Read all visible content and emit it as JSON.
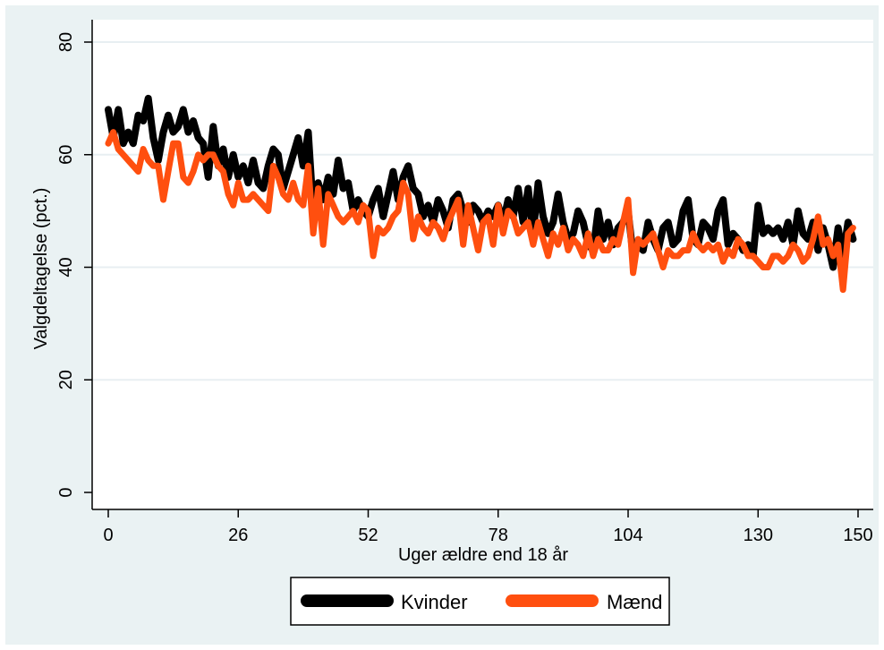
{
  "chart_data": {
    "type": "line",
    "xlabel": "Uger ældre end 18 år",
    "ylabel": "Valgdeltagelse (pct.)",
    "xlim": [
      0,
      150
    ],
    "ylim": [
      0,
      80
    ],
    "x_ticks": [
      0,
      26,
      52,
      78,
      104,
      130,
      150
    ],
    "y_ticks": [
      0,
      20,
      40,
      60,
      80
    ],
    "grid": true,
    "legend_position": "bottom",
    "series": [
      {
        "name": "Kvinder",
        "color": "#000000",
        "x": [
          0,
          1,
          2,
          3,
          4,
          5,
          6,
          7,
          8,
          9,
          10,
          11,
          12,
          13,
          14,
          15,
          16,
          17,
          18,
          19,
          20,
          21,
          22,
          23,
          24,
          25,
          26,
          27,
          28,
          29,
          30,
          31,
          32,
          33,
          34,
          35,
          36,
          37,
          38,
          39,
          40,
          41,
          42,
          43,
          44,
          45,
          46,
          47,
          48,
          49,
          50,
          51,
          52,
          53,
          54,
          55,
          56,
          57,
          58,
          59,
          60,
          61,
          62,
          63,
          64,
          65,
          66,
          67,
          68,
          69,
          70,
          71,
          72,
          73,
          74,
          75,
          76,
          77,
          78,
          79,
          80,
          81,
          82,
          83,
          84,
          85,
          86,
          87,
          88,
          89,
          90,
          91,
          92,
          93,
          94,
          95,
          96,
          97,
          98,
          99,
          100,
          101,
          102,
          103,
          104,
          105,
          106,
          107,
          108,
          109,
          110,
          111,
          112,
          113,
          114,
          115,
          116,
          117,
          118,
          119,
          120,
          121,
          122,
          123,
          124,
          125,
          126,
          127,
          128,
          129,
          130,
          131,
          132,
          133,
          134,
          135,
          136,
          137,
          138,
          139,
          140,
          141,
          142,
          143,
          144,
          145,
          146,
          147,
          148,
          149
        ],
        "values": [
          68,
          63,
          68,
          62,
          64,
          62,
          67,
          66,
          70,
          63,
          59,
          64,
          67,
          64,
          65,
          68,
          64,
          66,
          63,
          62,
          56,
          65,
          58,
          61,
          56,
          60,
          56,
          58,
          55,
          59,
          55,
          54,
          58,
          61,
          60,
          54,
          57,
          60,
          63,
          58,
          64,
          50,
          55,
          52,
          56,
          53,
          59,
          54,
          55,
          50,
          52,
          50,
          49,
          52,
          54,
          49,
          53,
          57,
          52,
          56,
          58,
          54,
          53,
          49,
          51,
          48,
          52,
          50,
          47,
          52,
          53,
          50,
          48,
          51,
          50,
          48,
          50,
          49,
          51,
          48,
          52,
          49,
          54,
          48,
          54,
          46,
          55,
          49,
          46,
          48,
          53,
          48,
          45,
          46,
          50,
          48,
          44,
          43,
          50,
          45,
          48,
          44,
          47,
          48,
          50,
          42,
          44,
          43,
          48,
          45,
          43,
          47,
          48,
          44,
          45,
          50,
          52,
          45,
          44,
          48,
          47,
          45,
          50,
          52,
          44,
          46,
          45,
          43,
          44,
          42,
          51,
          46,
          47,
          46,
          47,
          45,
          48,
          44,
          50,
          46,
          45,
          48,
          43,
          47,
          44,
          40,
          47,
          42,
          48,
          45
        ]
      },
      {
        "name": "Mænd",
        "color": "#ff4f0f",
        "x": [
          0,
          1,
          2,
          3,
          4,
          5,
          6,
          7,
          8,
          9,
          10,
          11,
          12,
          13,
          14,
          15,
          16,
          17,
          18,
          19,
          20,
          21,
          22,
          23,
          24,
          25,
          26,
          27,
          28,
          29,
          30,
          31,
          32,
          33,
          34,
          35,
          36,
          37,
          38,
          39,
          40,
          41,
          42,
          43,
          44,
          45,
          46,
          47,
          48,
          49,
          50,
          51,
          52,
          53,
          54,
          55,
          56,
          57,
          58,
          59,
          60,
          61,
          62,
          63,
          64,
          65,
          66,
          67,
          68,
          69,
          70,
          71,
          72,
          73,
          74,
          75,
          76,
          77,
          78,
          79,
          80,
          81,
          82,
          83,
          84,
          85,
          86,
          87,
          88,
          89,
          90,
          91,
          92,
          93,
          94,
          95,
          96,
          97,
          98,
          99,
          100,
          101,
          102,
          103,
          104,
          105,
          106,
          107,
          108,
          109,
          110,
          111,
          112,
          113,
          114,
          115,
          116,
          117,
          118,
          119,
          120,
          121,
          122,
          123,
          124,
          125,
          126,
          127,
          128,
          129,
          130,
          131,
          132,
          133,
          134,
          135,
          136,
          137,
          138,
          139,
          140,
          141,
          142,
          143,
          144,
          145,
          146,
          147,
          148,
          149
        ],
        "values": [
          62,
          64,
          61,
          60,
          59,
          58,
          57,
          61,
          59,
          58,
          58,
          52,
          57,
          62,
          62,
          56,
          55,
          57,
          60,
          59,
          60,
          60,
          58,
          57,
          53,
          51,
          55,
          52,
          52,
          53,
          52,
          51,
          50,
          58,
          56,
          53,
          52,
          55,
          52,
          51,
          58,
          46,
          54,
          44,
          53,
          51,
          49,
          48,
          49,
          50,
          48,
          51,
          50,
          42,
          47,
          46,
          47,
          49,
          50,
          55,
          53,
          45,
          49,
          47,
          46,
          48,
          47,
          45,
          48,
          50,
          52,
          44,
          51,
          47,
          43,
          48,
          49,
          44,
          51,
          46,
          50,
          49,
          46,
          47,
          48,
          44,
          48,
          45,
          42,
          46,
          44,
          47,
          43,
          45,
          44,
          42,
          46,
          42,
          45,
          43,
          43,
          45,
          44,
          48,
          52,
          39,
          45,
          44,
          45,
          46,
          43,
          40,
          43,
          42,
          42,
          43,
          43,
          46,
          44,
          43,
          44,
          43,
          44,
          41,
          43,
          42,
          45,
          44,
          42,
          42,
          41,
          40,
          40,
          42,
          42,
          41,
          42,
          44,
          43,
          41,
          42,
          45,
          49,
          44,
          45,
          42,
          44,
          36,
          46,
          47
        ]
      }
    ]
  }
}
